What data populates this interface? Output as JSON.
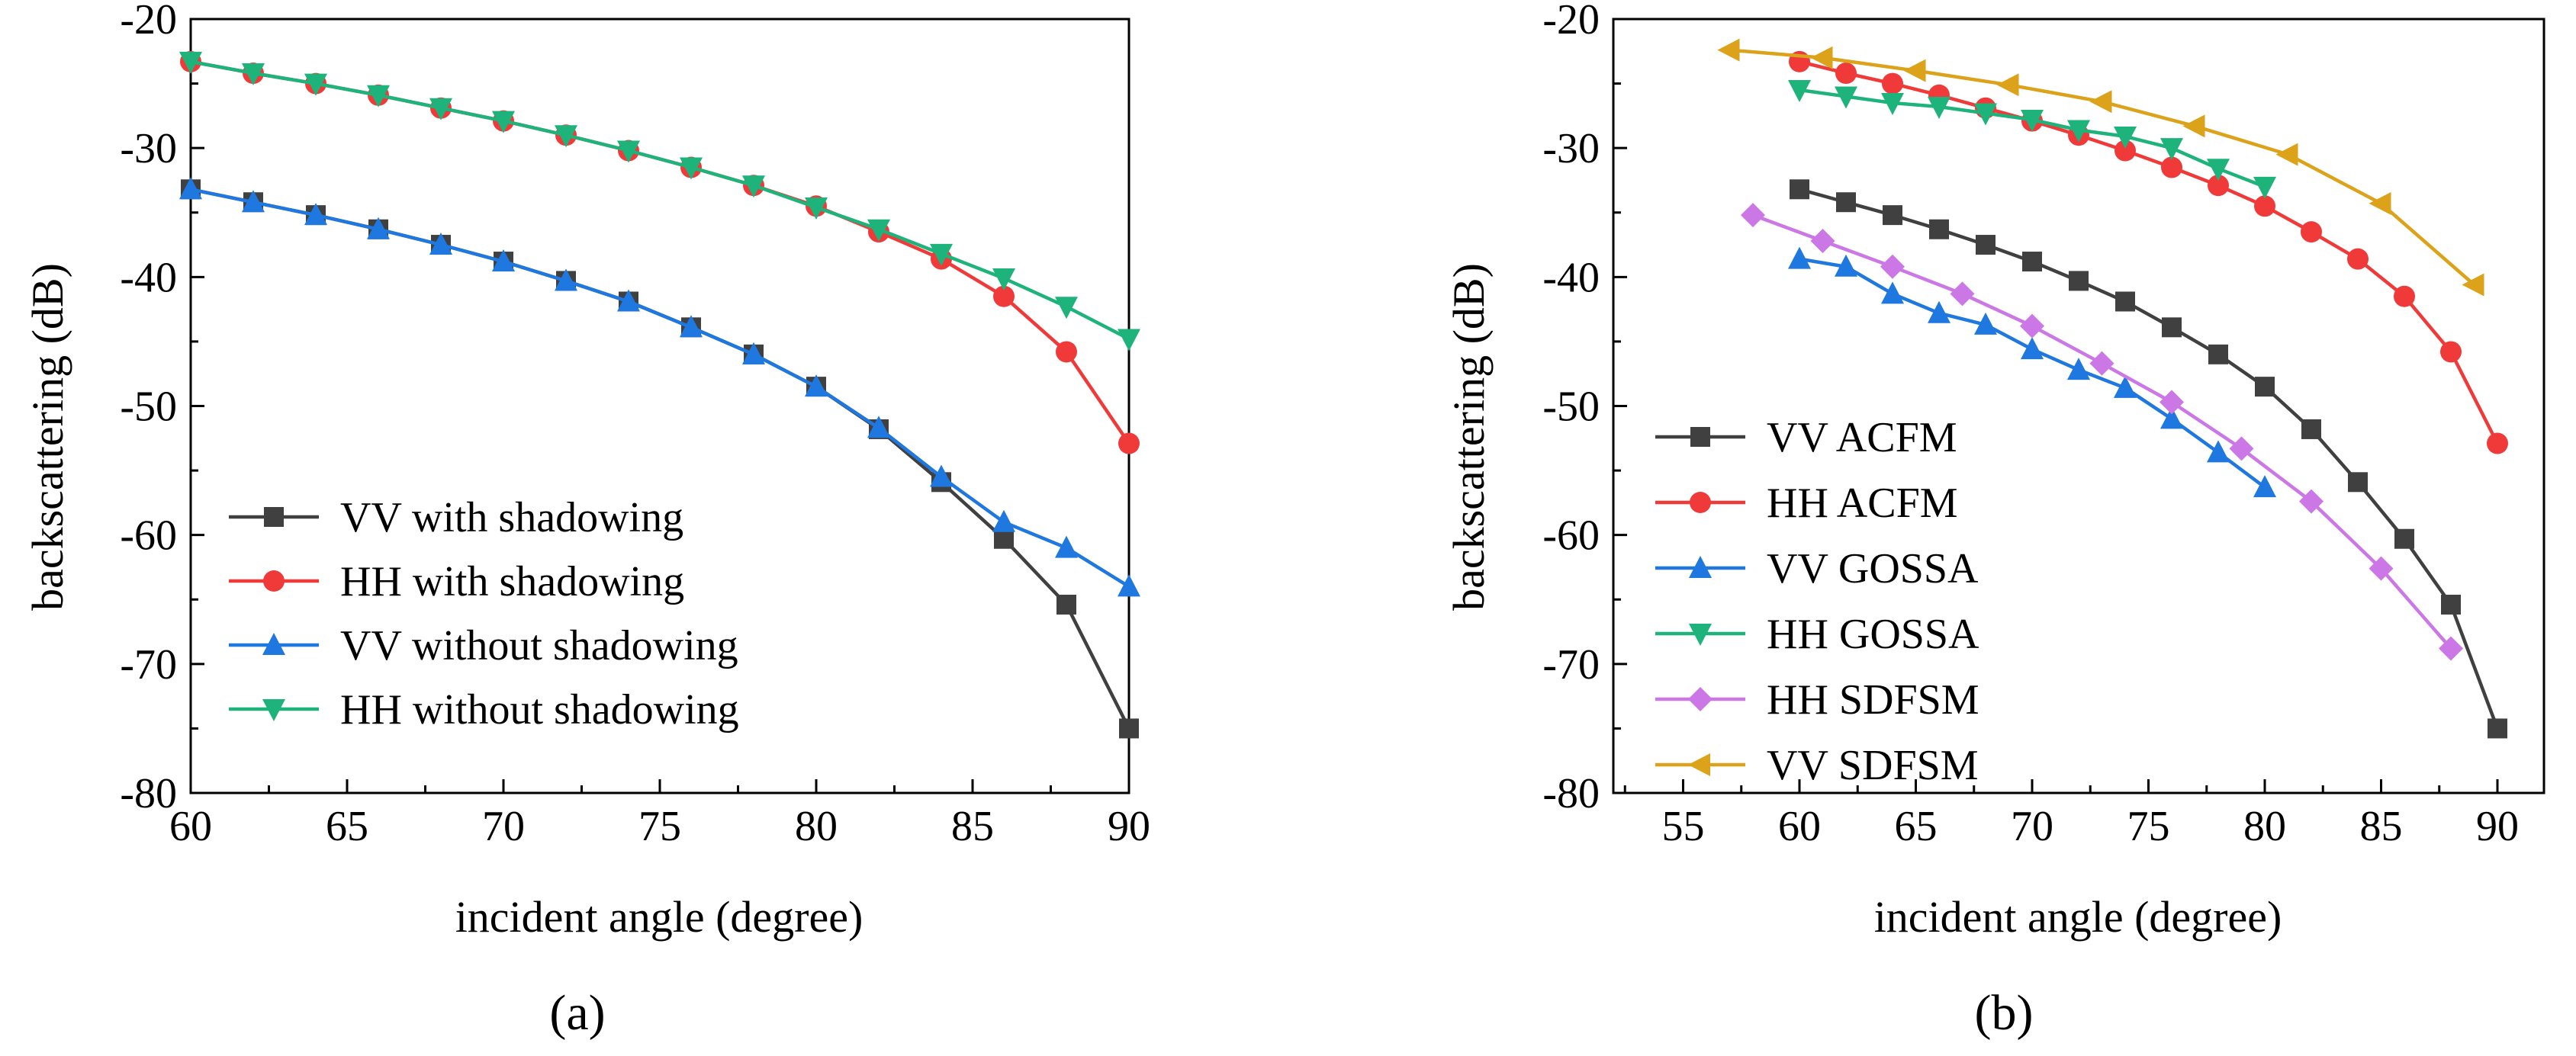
{
  "figure": {
    "panel_labels": [
      "(a)",
      "(b)"
    ]
  },
  "chart_data": [
    {
      "type": "line",
      "panel": "a",
      "title": "",
      "xlabel": "incident angle (degree)",
      "ylabel": "backscattering (dB)",
      "xlim": [
        60,
        90
      ],
      "ylim": [
        -80,
        -20
      ],
      "xticks": [
        60,
        65,
        70,
        75,
        80,
        85,
        90
      ],
      "yticks": [
        -20,
        -30,
        -40,
        -50,
        -60,
        -70,
        -80
      ],
      "grid": false,
      "legend_position": "bottom-left",
      "series": [
        {
          "name": "VV with shadowing",
          "color": "#404040",
          "marker": "square",
          "x": [
            60,
            62,
            64,
            66,
            68,
            70,
            72,
            74,
            76,
            78,
            80,
            82,
            84,
            86,
            88,
            90
          ],
          "y": [
            -33.2,
            -34.2,
            -35.2,
            -36.3,
            -37.5,
            -38.8,
            -40.3,
            -41.9,
            -43.9,
            -46.0,
            -48.5,
            -51.8,
            -55.9,
            -60.3,
            -65.4,
            -75.0
          ]
        },
        {
          "name": "HH with shadowing",
          "color": "#f03a3a",
          "marker": "circle",
          "x": [
            60,
            62,
            64,
            66,
            68,
            70,
            72,
            74,
            76,
            78,
            80,
            82,
            84,
            86,
            88,
            90
          ],
          "y": [
            -23.3,
            -24.2,
            -25.0,
            -25.9,
            -26.9,
            -27.9,
            -29.0,
            -30.2,
            -31.5,
            -32.9,
            -34.5,
            -36.5,
            -38.6,
            -41.5,
            -45.8,
            -52.9
          ]
        },
        {
          "name": "VV without shadowing",
          "color": "#1f77e0",
          "marker": "triangle-up",
          "x": [
            60,
            62,
            64,
            66,
            68,
            70,
            72,
            74,
            76,
            78,
            80,
            82,
            84,
            86,
            88,
            90
          ],
          "y": [
            -33.2,
            -34.2,
            -35.2,
            -36.3,
            -37.5,
            -38.8,
            -40.3,
            -41.9,
            -43.9,
            -46.0,
            -48.5,
            -51.7,
            -55.5,
            -59.0,
            -61.0,
            -64.0
          ]
        },
        {
          "name": "HH without shadowing",
          "color": "#1db37a",
          "marker": "triangle-down",
          "x": [
            60,
            62,
            64,
            66,
            68,
            70,
            72,
            74,
            76,
            78,
            80,
            82,
            84,
            86,
            88,
            90
          ],
          "y": [
            -23.3,
            -24.2,
            -25.0,
            -25.9,
            -26.9,
            -27.9,
            -29.0,
            -30.2,
            -31.5,
            -32.9,
            -34.6,
            -36.3,
            -38.2,
            -40.1,
            -42.3,
            -44.8
          ]
        }
      ]
    },
    {
      "type": "line",
      "panel": "b",
      "title": "",
      "xlabel": "incident angle (degree)",
      "ylabel": "backscattering (dB)",
      "xlim": [
        52,
        92
      ],
      "ylim": [
        -80,
        -20
      ],
      "xticks": [
        55,
        60,
        65,
        70,
        75,
        80,
        85,
        90
      ],
      "yticks": [
        -20,
        -30,
        -40,
        -50,
        -60,
        -70,
        -80
      ],
      "grid": false,
      "legend_position": "bottom-left",
      "series": [
        {
          "name": "VV ACFM",
          "color": "#404040",
          "marker": "square",
          "x": [
            60,
            62,
            64,
            66,
            68,
            70,
            72,
            74,
            76,
            78,
            80,
            82,
            84,
            86,
            88,
            90
          ],
          "y": [
            -33.2,
            -34.2,
            -35.2,
            -36.3,
            -37.5,
            -38.8,
            -40.3,
            -41.9,
            -43.9,
            -46.0,
            -48.5,
            -51.8,
            -55.9,
            -60.3,
            -65.4,
            -75.0
          ]
        },
        {
          "name": "HH ACFM",
          "color": "#f03a3a",
          "marker": "circle",
          "x": [
            60,
            62,
            64,
            66,
            68,
            70,
            72,
            74,
            76,
            78,
            80,
            82,
            84,
            86,
            88,
            90
          ],
          "y": [
            -23.3,
            -24.2,
            -25.0,
            -25.9,
            -26.9,
            -27.9,
            -29.0,
            -30.2,
            -31.5,
            -32.9,
            -34.5,
            -36.5,
            -38.6,
            -41.5,
            -45.8,
            -52.9
          ]
        },
        {
          "name": "VV GOSSA",
          "color": "#1f77e0",
          "marker": "triangle-up",
          "x": [
            60,
            62,
            64,
            66,
            68,
            70,
            72,
            74,
            76,
            78,
            80
          ],
          "y": [
            -38.6,
            -39.2,
            -41.3,
            -42.8,
            -43.7,
            -45.6,
            -47.2,
            -48.6,
            -51.0,
            -53.6,
            -56.3
          ]
        },
        {
          "name": "HH GOSSA",
          "color": "#1db37a",
          "marker": "triangle-down",
          "x": [
            60,
            62,
            64,
            66,
            68,
            70,
            72,
            74,
            76,
            78,
            80
          ],
          "y": [
            -25.5,
            -26.0,
            -26.5,
            -26.8,
            -27.3,
            -27.8,
            -28.6,
            -29.1,
            -30.0,
            -31.6,
            -33.0
          ]
        },
        {
          "name": "HH SDFSM",
          "color": "#cc77e6",
          "marker": "diamond",
          "x": [
            58,
            61,
            64,
            67,
            70,
            73,
            76,
            79,
            82,
            85,
            88
          ],
          "y": [
            -35.2,
            -37.2,
            -39.2,
            -41.3,
            -43.8,
            -46.7,
            -49.7,
            -53.3,
            -57.4,
            -62.6,
            -68.8
          ]
        },
        {
          "name": "VV SDFSM",
          "color": "#dba21a",
          "marker": "triangle-left",
          "x": [
            57,
            61,
            65,
            69,
            73,
            77,
            81,
            85,
            89
          ],
          "y": [
            -22.4,
            -23.0,
            -24.0,
            -25.1,
            -26.4,
            -28.3,
            -30.5,
            -34.3,
            -40.6
          ]
        }
      ]
    }
  ]
}
